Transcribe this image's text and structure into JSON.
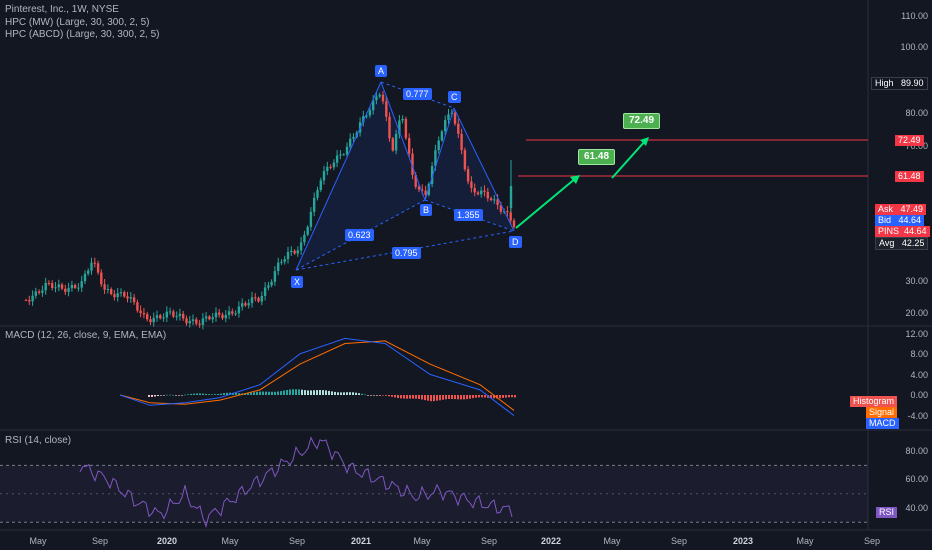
{
  "header": {
    "title": "Pinterest, Inc., 1W, NYSE",
    "indicator1": "HPC (MW) (Large, 30, 300, 2, 5)",
    "indicator2": "HPC (ABCD) (Large, 30, 300, 2, 5)"
  },
  "macd_title": "MACD (12, 26, close, 9, EMA, EMA)",
  "rsi_title": "RSI (14, close)",
  "colors": {
    "background": "#131722",
    "up": "#26a69a",
    "down": "#ef5350",
    "pattern": "#2962ff",
    "target": "#4caf50",
    "arrow": "#00e676",
    "level_line": "#f23645",
    "macd_line": "#2962ff",
    "signal_line": "#ff6d00",
    "rsi_line": "#7e57c2"
  },
  "price_axis": [
    "110.00",
    "100.00",
    "80.00",
    "70.00",
    "30.00",
    "20.00"
  ],
  "macd_axis": [
    "12.00",
    "8.00",
    "4.00",
    "0.00",
    "-4.00"
  ],
  "rsi_axis": [
    "80.00",
    "60.00",
    "40.00"
  ],
  "time_axis": [
    {
      "label": "May",
      "bold": false
    },
    {
      "label": "Sep",
      "bold": false
    },
    {
      "label": "2020",
      "bold": true
    },
    {
      "label": "May",
      "bold": false
    },
    {
      "label": "Sep",
      "bold": false
    },
    {
      "label": "2021",
      "bold": true
    },
    {
      "label": "May",
      "bold": false
    },
    {
      "label": "Sep",
      "bold": false
    },
    {
      "label": "2022",
      "bold": true
    },
    {
      "label": "May",
      "bold": false
    },
    {
      "label": "Sep",
      "bold": false
    },
    {
      "label": "2023",
      "bold": true
    },
    {
      "label": "May",
      "bold": false
    },
    {
      "label": "Sep",
      "bold": false
    }
  ],
  "tags": {
    "high": {
      "label": "High",
      "value": "89.90"
    },
    "t2": "72.49",
    "t1": "61.48",
    "ask": {
      "label": "Ask",
      "value": "47.49"
    },
    "bid": {
      "label": "Bid",
      "value": "44.64"
    },
    "pins": {
      "label": "PINS",
      "value": "44.64"
    },
    "avg": {
      "label": "Avg",
      "value": "42.25"
    },
    "histogram": "Histogram",
    "signal": "Signal",
    "macd": "MACD",
    "rsi": "RSI"
  },
  "pattern": {
    "points": [
      "X",
      "A",
      "B",
      "C",
      "D"
    ],
    "ratios": {
      "xab": "0.623",
      "abc": "0.777",
      "bcd": "1.355",
      "xad": "0.795"
    },
    "target1": "61.48",
    "target2": "72.49"
  },
  "chart_data": [
    {
      "type": "candlestick",
      "title": "Pinterest, Inc., 1W, NYSE",
      "x_range": [
        "2019-04",
        "2023-10"
      ],
      "y_scale": "log",
      "ylim": [
        18,
        115
      ],
      "key_points": [
        {
          "date": "2019-04",
          "value": 26
        },
        {
          "date": "2019-06",
          "value": 30
        },
        {
          "date": "2019-08",
          "value": 33
        },
        {
          "date": "2019-10",
          "value": 25
        },
        {
          "date": "2019-12",
          "value": 20
        },
        {
          "date": "2020-03",
          "value": 16
        },
        {
          "date": "2020-06",
          "value": 23
        },
        {
          "date": "2020-08",
          "value": 33
        },
        {
          "date": "2020-10",
          "value": 60
        },
        {
          "date": "2020-12",
          "value": 68
        },
        {
          "date": "2021-02",
          "value": 85
        },
        {
          "date": "2021-03",
          "value": 72
        },
        {
          "date": "2021-05",
          "value": 56
        },
        {
          "date": "2021-07",
          "value": 78
        },
        {
          "date": "2021-08",
          "value": 54
        },
        {
          "date": "2021-10",
          "value": 45
        },
        {
          "date": "2021-11",
          "value": 44.64
        }
      ],
      "pattern_points": [
        {
          "label": "X",
          "date": "2020-09",
          "value": 31
        },
        {
          "label": "A",
          "date": "2021-02",
          "value": 89.9
        },
        {
          "label": "B",
          "date": "2021-05",
          "value": 53
        },
        {
          "label": "C",
          "date": "2021-07",
          "value": 81
        },
        {
          "label": "D",
          "date": "2021-11",
          "value": 42.25
        }
      ],
      "levels": [
        61.48,
        72.49
      ]
    },
    {
      "type": "bar",
      "title": "MACD (12, 26, close, 9, EMA, EMA)",
      "ylim": [
        -5,
        14
      ],
      "series": [
        {
          "name": "MACD",
          "values": [
            0,
            -2,
            -1.5,
            -0.5,
            2,
            8,
            11,
            10,
            4,
            1,
            -4
          ]
        },
        {
          "name": "Signal",
          "values": [
            0,
            -1.5,
            -1.8,
            -1,
            1,
            6,
            10,
            10.5,
            6,
            2,
            -3
          ]
        }
      ]
    },
    {
      "type": "line",
      "title": "RSI (14, close)",
      "ylim": [
        25,
        95
      ],
      "series": [
        {
          "name": "RSI",
          "values": [
            70,
            60,
            45,
            35,
            50,
            32,
            55,
            72,
            88,
            68,
            58,
            48,
            52,
            45,
            38
          ]
        }
      ]
    }
  ]
}
